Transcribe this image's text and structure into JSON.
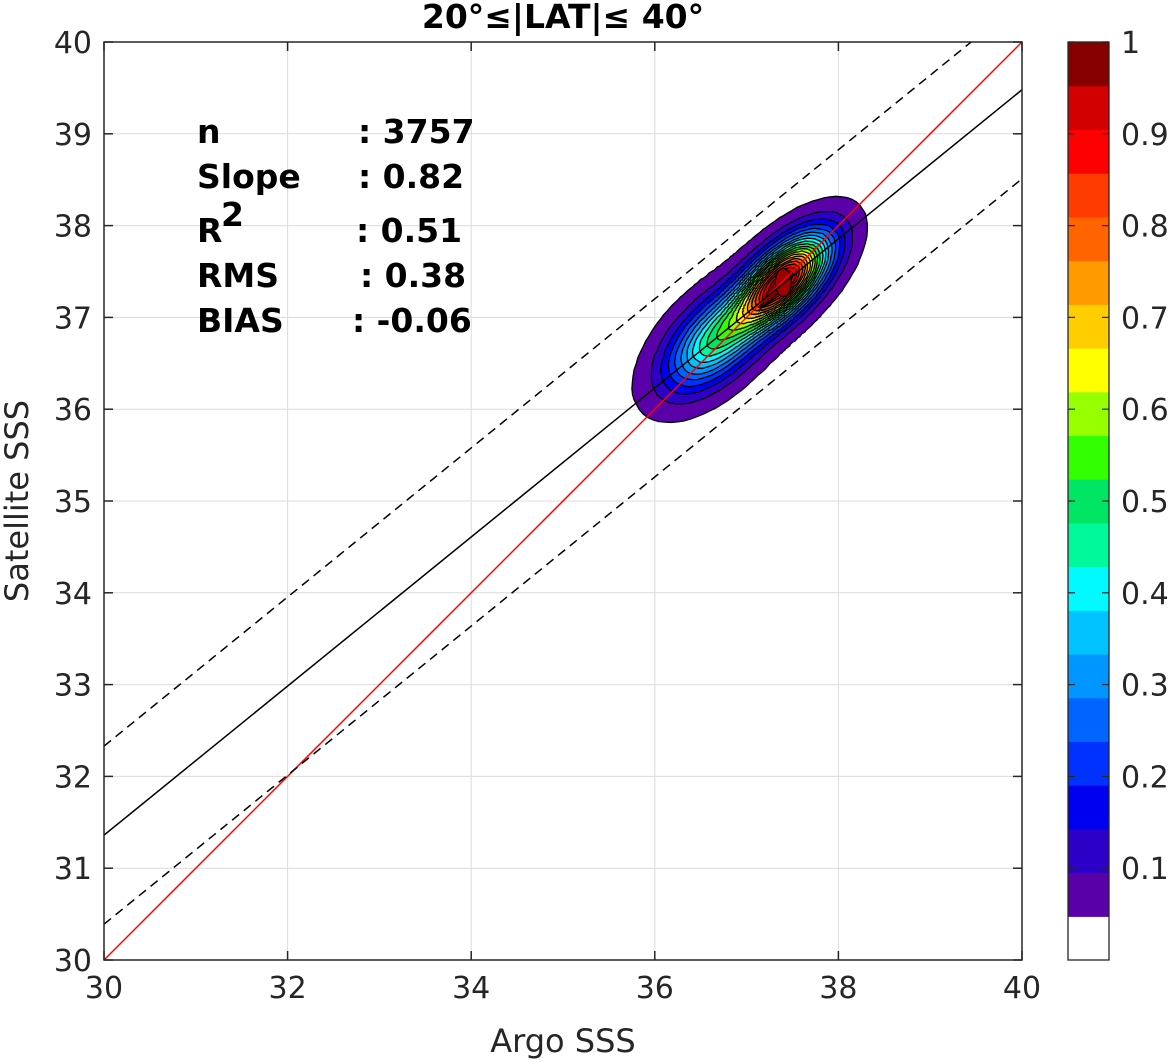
{
  "chart_data": {
    "type": "contour-scatter",
    "title": "20°≤|LAT|≤ 40°",
    "xlabel": "Argo SSS",
    "ylabel": "Satellite SSS",
    "xlim": [
      30,
      40
    ],
    "ylim": [
      30,
      40
    ],
    "xticks": [
      "30",
      "32",
      "34",
      "36",
      "38",
      "40"
    ],
    "yticks": [
      "30",
      "31",
      "32",
      "33",
      "34",
      "35",
      "36",
      "37",
      "38",
      "39",
      "40"
    ],
    "grid": true,
    "stats": [
      {
        "label": "n",
        "value": ": 3757"
      },
      {
        "label": "Slope",
        "value": ": 0.82"
      },
      {
        "label": "R2",
        "value": ": 0.51"
      },
      {
        "label": "RMS",
        "value": ": 0.38"
      },
      {
        "label": "BIAS",
        "value": ": -0.06"
      }
    ],
    "lines": [
      {
        "style": "one-to-one",
        "color": "#ff0000",
        "x": [
          30,
          40
        ],
        "y": [
          30,
          40
        ]
      },
      {
        "style": "regression",
        "color": "#000000",
        "x": [
          30,
          40
        ],
        "y": [
          31.36,
          39.48
        ]
      },
      {
        "style": "dashed-upper",
        "color": "#000000",
        "x": [
          30,
          40
        ],
        "y": [
          32.33,
          40.45
        ]
      },
      {
        "style": "dashed-lower",
        "color": "#000000",
        "x": [
          30,
          40
        ],
        "y": [
          30.39,
          38.51
        ]
      }
    ],
    "density_peaks": [
      {
        "x": 37.4,
        "y": 37.4,
        "value": 1.0
      },
      {
        "x": 36.65,
        "y": 36.75,
        "value": 0.45
      }
    ],
    "colorbar": {
      "range": [
        0,
        1
      ],
      "ticks": [
        "0.1",
        "0.2",
        "0.3",
        "0.4",
        "0.5",
        "0.6",
        "0.7",
        "0.8",
        "0.9",
        "1"
      ],
      "colors": [
        "#ffffff",
        "#5a00a8",
        "#2d00c8",
        "#0000f0",
        "#0032ff",
        "#0064ff",
        "#0096ff",
        "#00c3ff",
        "#00faff",
        "#00fa9b",
        "#00e664",
        "#32ff00",
        "#96ff00",
        "#ffff00",
        "#ffcd00",
        "#ff9b00",
        "#ff6400",
        "#ff3c00",
        "#ff0000",
        "#d20000",
        "#870000"
      ]
    }
  }
}
